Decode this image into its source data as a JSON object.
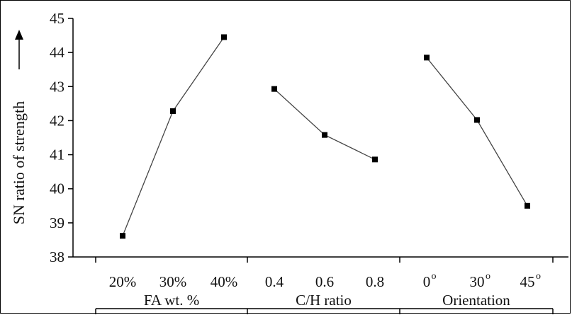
{
  "chart_data": {
    "type": "line",
    "ylabel": "SN ratio of  strength",
    "ylim": [
      38,
      45
    ],
    "yticks": [
      38,
      39,
      40,
      41,
      42,
      43,
      44,
      45
    ],
    "grid": false,
    "legend": "none",
    "groups": [
      {
        "name": "FA wt. %",
        "categories": [
          "20%",
          "30%",
          "40%"
        ],
        "values": [
          38.62,
          42.28,
          44.45
        ]
      },
      {
        "name": "C/H ratio",
        "categories": [
          "0.4",
          "0.6",
          "0.8"
        ],
        "values": [
          42.93,
          41.58,
          40.86
        ]
      },
      {
        "name": "Orientation",
        "categories": [
          "0",
          "30",
          "45"
        ],
        "superscript": "o",
        "values": [
          43.85,
          42.02,
          39.5
        ]
      }
    ]
  },
  "colors": {
    "line": "#444444",
    "marker": "#000000",
    "axis": "#000000"
  }
}
